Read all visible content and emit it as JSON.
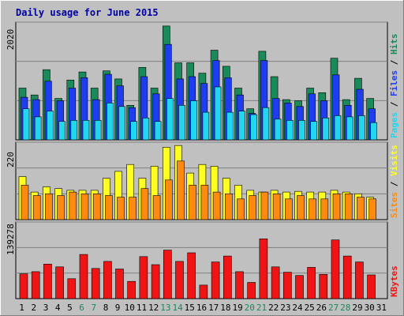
{
  "chart_data": {
    "type": "bar",
    "title": "Daily usage for June 2015",
    "days": [
      "1",
      "2",
      "3",
      "4",
      "5",
      "6",
      "7",
      "8",
      "9",
      "10",
      "11",
      "12",
      "13",
      "14",
      "15",
      "16",
      "17",
      "18",
      "19",
      "20",
      "21",
      "22",
      "23",
      "24",
      "25",
      "26",
      "27",
      "28",
      "29",
      "30",
      "31"
    ],
    "weekend_days": [
      "6",
      "7",
      "13",
      "14",
      "20",
      "21",
      "27",
      "28"
    ],
    "panels": [
      {
        "key": "requests",
        "ymax_label": "2020",
        "ymax": 2020,
        "legend": [
          "Pages",
          "Files",
          "Hits"
        ],
        "series": [
          {
            "name": "Hits",
            "color": "#1a8a5a",
            "values": [
              900,
              780,
              1220,
              720,
              1040,
              1180,
              900,
              1200,
              1060,
              600,
              1260,
              900,
              1980,
              1340,
              1340,
              1160,
              1560,
              1280,
              900,
              540,
              1540,
              1100,
              700,
              680,
              900,
              820,
              1420,
              700,
              1070,
              720,
              0
            ]
          },
          {
            "name": "Files",
            "color": "#1e3cf0",
            "values": [
              740,
              700,
              1020,
              680,
              900,
              1080,
              700,
              1140,
              940,
              560,
              1100,
              800,
              1660,
              1060,
              1100,
              980,
              1380,
              1080,
              780,
              460,
              1380,
              720,
              640,
              580,
              800,
              680,
              1130,
              600,
              880,
              540,
              0
            ]
          },
          {
            "name": "Pages",
            "color": "#22d6f0",
            "values": [
              540,
              400,
              500,
              320,
              340,
              340,
              340,
              640,
              580,
              320,
              380,
              320,
              720,
              600,
              680,
              480,
              920,
              480,
              500,
              440,
              560,
              360,
              340,
              340,
              320,
              380,
              420,
              400,
              420,
              300,
              0
            ]
          }
        ]
      },
      {
        "key": "visits",
        "ymax_label": "220",
        "ymax": 220,
        "legend": [
          "Sites",
          "Visits"
        ],
        "series": [
          {
            "name": "Visits",
            "color": "#ffff22",
            "values": [
              125,
              80,
              95,
              90,
              85,
              85,
              85,
              120,
              140,
              160,
              120,
              155,
              210,
              215,
              135,
              160,
              155,
              120,
              100,
              85,
              80,
              85,
              80,
              82,
              80,
              80,
              85,
              80,
              75,
              65,
              0
            ]
          },
          {
            "name": "Sites",
            "color": "#ff8a10",
            "values": [
              100,
              70,
              75,
              70,
              80,
              75,
              75,
              70,
              65,
              65,
              90,
              70,
              115,
              170,
              100,
              100,
              80,
              75,
              60,
              70,
              80,
              75,
              60,
              70,
              60,
              60,
              75,
              75,
              65,
              60,
              0
            ]
          }
        ]
      },
      {
        "key": "kbytes",
        "ymax_label": "139278",
        "ymax": 139278,
        "legend": [
          "KBytes"
        ],
        "series": [
          {
            "name": "KBytes",
            "color": "#f01414",
            "values": [
              46000,
              50000,
              64000,
              59000,
              37000,
              82000,
              56000,
              69000,
              55000,
              32000,
              78000,
              63000,
              90000,
              69000,
              85000,
              25000,
              68000,
              79000,
              50000,
              30000,
              111000,
              59000,
              49000,
              43000,
              58000,
              45000,
              109000,
              79000,
              68000,
              44000,
              0
            ]
          }
        ]
      }
    ]
  }
}
